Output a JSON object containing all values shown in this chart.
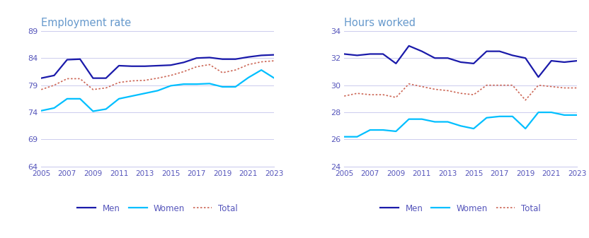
{
  "years": [
    2005,
    2006,
    2007,
    2008,
    2009,
    2010,
    2011,
    2012,
    2013,
    2014,
    2015,
    2016,
    2017,
    2018,
    2019,
    2020,
    2021,
    2022,
    2023
  ],
  "emp_men": [
    80.3,
    80.8,
    83.7,
    83.8,
    80.3,
    80.3,
    82.6,
    82.5,
    82.5,
    82.6,
    82.7,
    83.2,
    84.0,
    84.1,
    83.8,
    83.8,
    84.2,
    84.5,
    84.6
  ],
  "emp_women": [
    74.3,
    74.8,
    76.5,
    76.5,
    74.2,
    74.6,
    76.5,
    77.0,
    77.5,
    78.0,
    78.9,
    79.2,
    79.2,
    79.3,
    78.7,
    78.7,
    80.4,
    81.8,
    80.3
  ],
  "emp_total": [
    78.2,
    79.0,
    80.2,
    80.2,
    78.2,
    78.5,
    79.5,
    79.8,
    79.9,
    80.3,
    80.8,
    81.5,
    82.4,
    82.8,
    81.3,
    81.8,
    82.8,
    83.3,
    83.5
  ],
  "hrs_men": [
    32.3,
    32.2,
    32.3,
    32.3,
    31.6,
    32.9,
    32.5,
    32.0,
    32.0,
    31.7,
    31.6,
    32.5,
    32.5,
    32.2,
    32.0,
    30.6,
    31.8,
    31.7,
    31.8
  ],
  "hrs_women": [
    26.2,
    26.2,
    26.7,
    26.7,
    26.6,
    27.5,
    27.5,
    27.3,
    27.3,
    27.0,
    26.8,
    27.6,
    27.7,
    27.7,
    26.8,
    28.0,
    28.0,
    27.8,
    27.8
  ],
  "hrs_total": [
    29.2,
    29.4,
    29.3,
    29.3,
    29.1,
    30.1,
    29.9,
    29.7,
    29.6,
    29.4,
    29.3,
    30.0,
    30.0,
    30.0,
    28.9,
    30.0,
    29.9,
    29.8,
    29.8
  ],
  "emp_ylim": [
    64,
    89
  ],
  "emp_yticks": [
    64,
    69,
    74,
    79,
    84,
    89
  ],
  "hrs_ylim": [
    24,
    34
  ],
  "hrs_yticks": [
    24,
    26,
    28,
    30,
    32,
    34
  ],
  "color_men": "#1a1aaa",
  "color_women": "#00bfff",
  "color_total": "#cc6655",
  "title_emp": "Employment rate",
  "title_hrs": "Hours worked",
  "title_color": "#6699cc",
  "axis_color": "#5555bb",
  "tick_color": "#5555bb",
  "background_color": "#ffffff",
  "grid_color": "#ccccee",
  "xticks": [
    2005,
    2007,
    2009,
    2011,
    2013,
    2015,
    2017,
    2019,
    2021,
    2023
  ]
}
